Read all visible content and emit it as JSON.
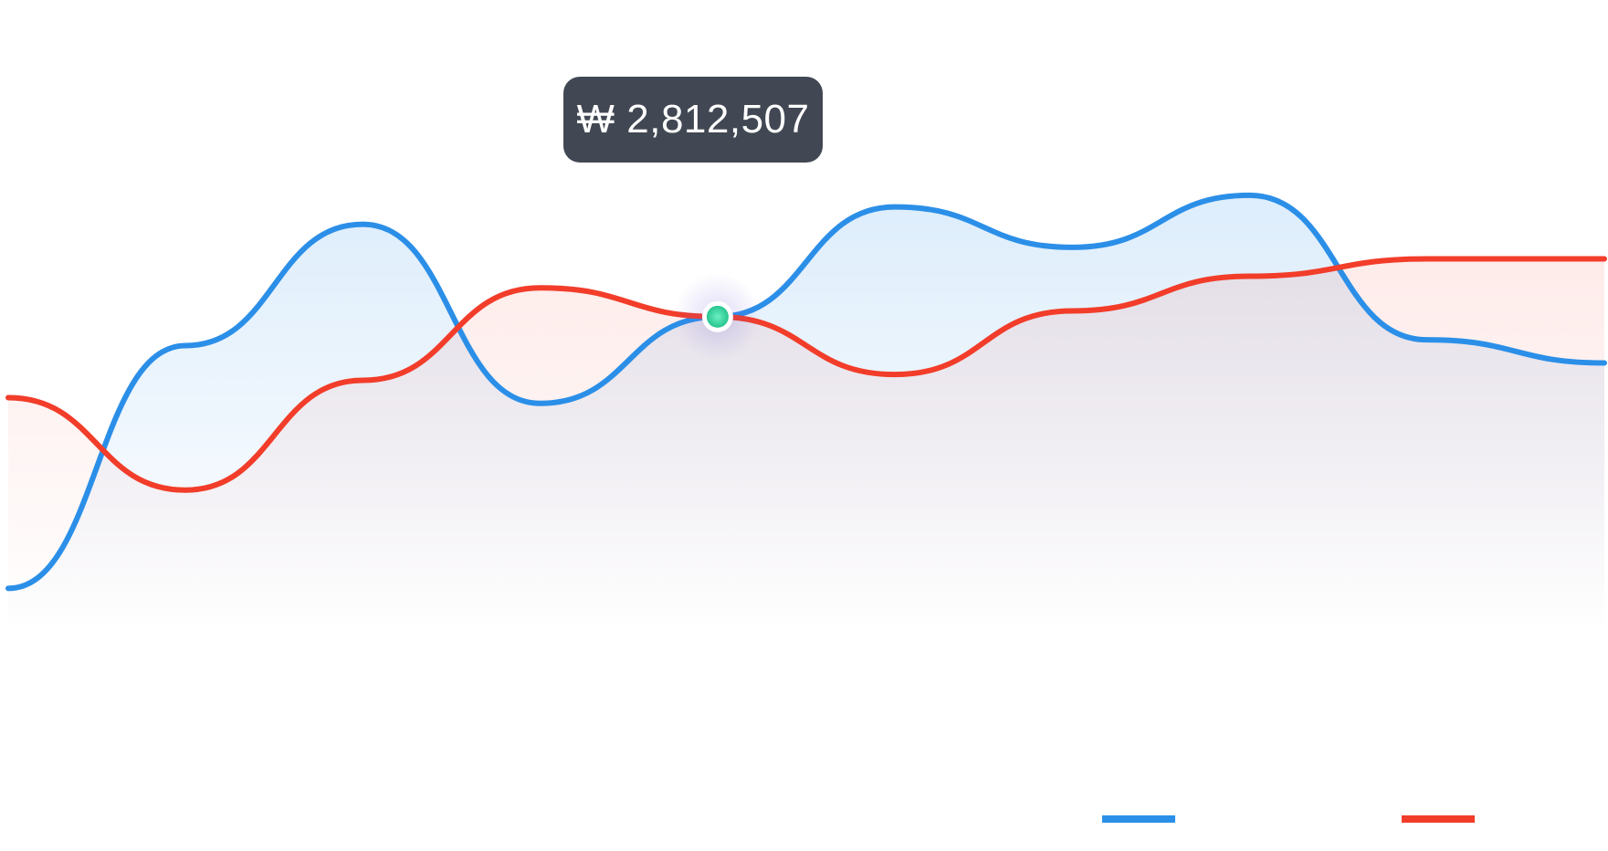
{
  "chart_data": {
    "type": "area",
    "x": [
      0,
      1,
      2,
      3,
      4,
      5,
      6,
      7,
      8,
      9
    ],
    "ylim": [
      0,
      100
    ],
    "series": [
      {
        "color": "#2B8FE8",
        "values": [
          8,
          50,
          71,
          40,
          55,
          74,
          67,
          76,
          51,
          47
        ]
      },
      {
        "color": "#F23D2A",
        "values": [
          41,
          25,
          44,
          60,
          55,
          45,
          56,
          62,
          65,
          65
        ]
      }
    ],
    "hover": {
      "x": 4,
      "label": "₩ 2,812,507"
    },
    "grid": false,
    "legend": "bottom-right"
  },
  "colors": {
    "tooltip_bg": "#414853",
    "cursor_line": "#3DE3A8",
    "marker_fill": "#37D6A0"
  }
}
